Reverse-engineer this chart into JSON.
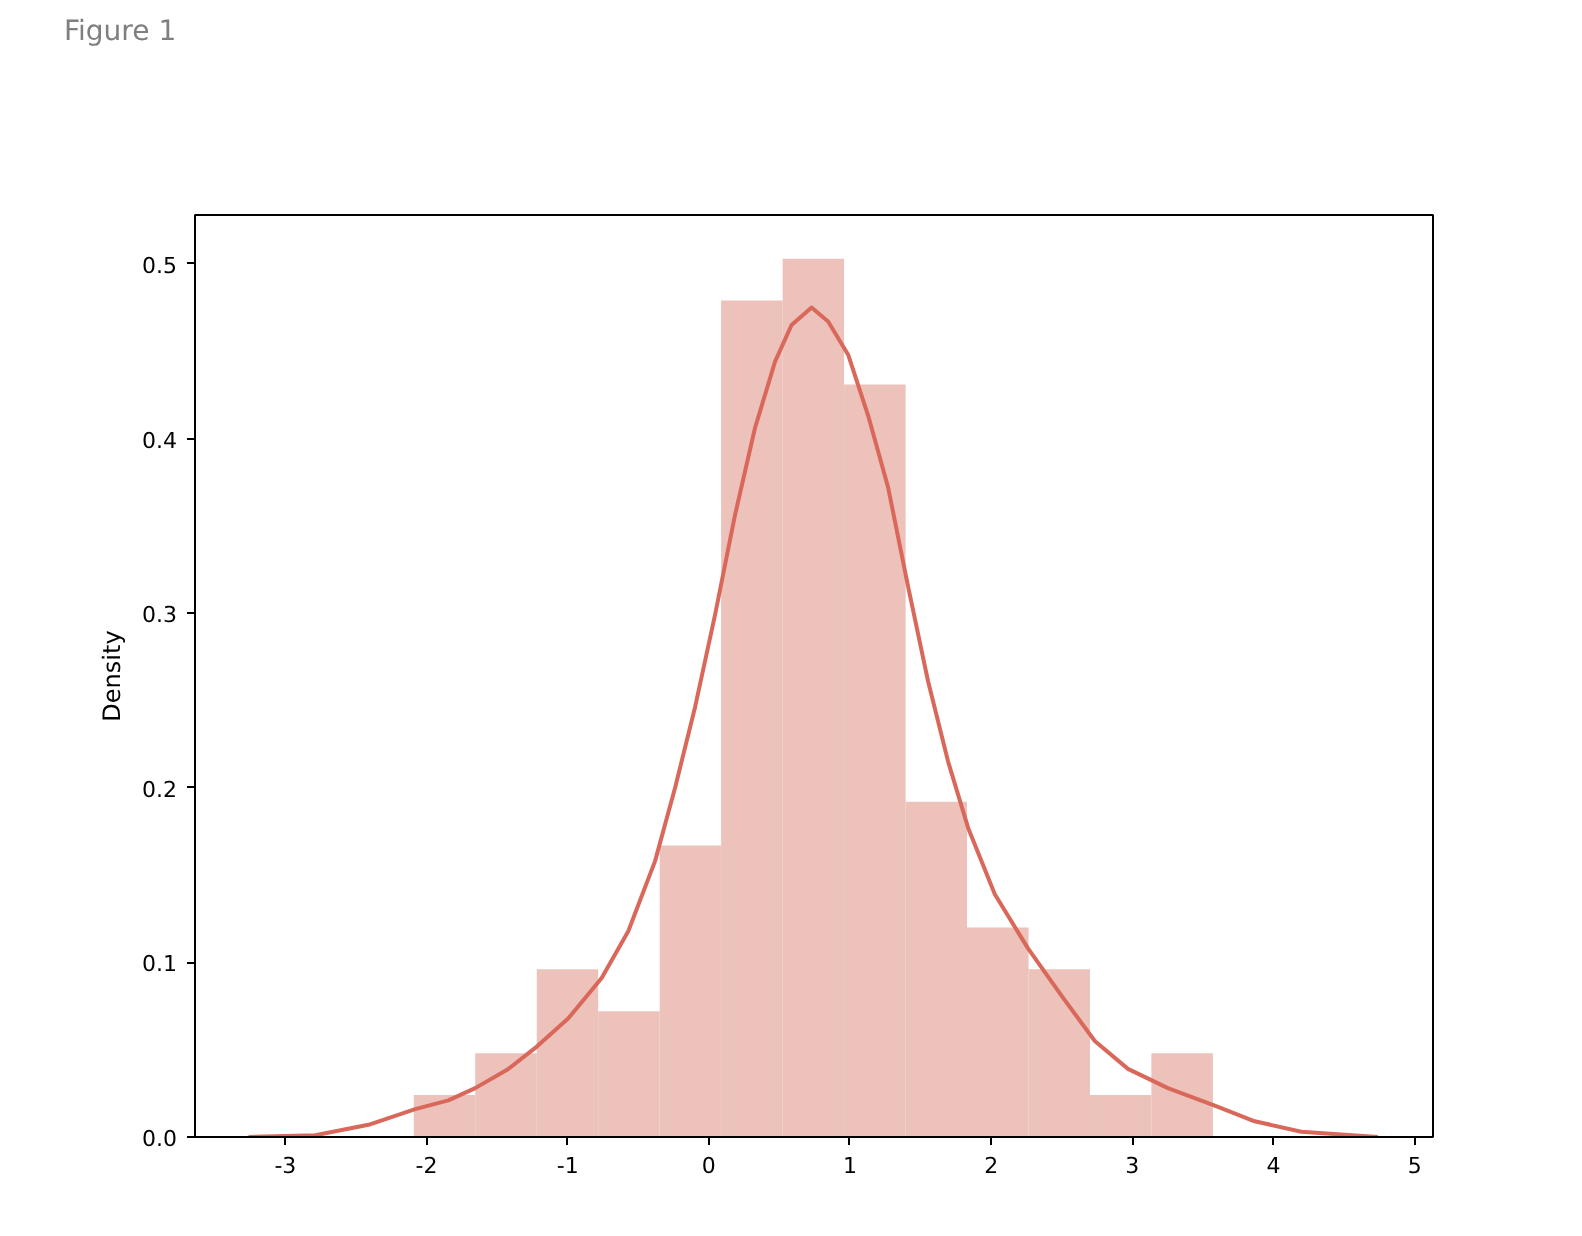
{
  "chart_data": {
    "type": "histogram",
    "ylabel": "Density",
    "annotations": [
      "Figure 1"
    ],
    "xlim": [
      -3.64,
      5.13
    ],
    "ylim": [
      0,
      0.528
    ],
    "xticks": [
      -3,
      -2,
      -1,
      0,
      1,
      2,
      3,
      4,
      5
    ],
    "yticks": [
      {
        "value": 0,
        "label": "0.0"
      },
      0.1,
      0.2,
      0.3,
      0.4,
      0.5
    ],
    "series": [
      {
        "color": "#ecc2bb",
        "bins": [
          -2.09,
          -1.655,
          -1.219,
          -0.784,
          -0.348,
          0.087,
          0.523,
          0.958,
          1.394,
          1.829,
          2.265,
          2.7,
          3.135,
          3.571
        ],
        "values": [
          0.024,
          0.048,
          0.096,
          0.072,
          0.167,
          0.479,
          0.503,
          0.431,
          0.192,
          0.12,
          0.096,
          0.024,
          0.048
        ]
      },
      {
        "type": "line",
        "color": "#d9685b",
        "x": [
          -3.261,
          -2.788,
          -2.411,
          -2.08,
          -1.845,
          -1.655,
          -1.42,
          -1.23,
          -0.995,
          -0.759,
          -0.57,
          -0.381,
          -0.239,
          -0.098,
          0.044,
          0.185,
          0.327,
          0.469,
          0.586,
          0.728,
          0.845,
          0.987,
          1.129,
          1.27,
          1.412,
          1.553,
          1.695,
          1.837,
          2.026,
          2.261,
          2.498,
          2.734,
          2.969,
          3.252,
          3.584,
          3.867,
          4.197,
          4.739
        ],
        "values": [
          0,
          0.001,
          0.007,
          0.016,
          0.021,
          0.028,
          0.039,
          0.051,
          0.068,
          0.091,
          0.118,
          0.158,
          0.2,
          0.246,
          0.299,
          0.356,
          0.406,
          0.444,
          0.465,
          0.475,
          0.467,
          0.448,
          0.413,
          0.372,
          0.315,
          0.261,
          0.215,
          0.177,
          0.139,
          0.108,
          0.081,
          0.055,
          0.039,
          0.028,
          0.018,
          0.009,
          0.003,
          0
        ]
      }
    ]
  }
}
